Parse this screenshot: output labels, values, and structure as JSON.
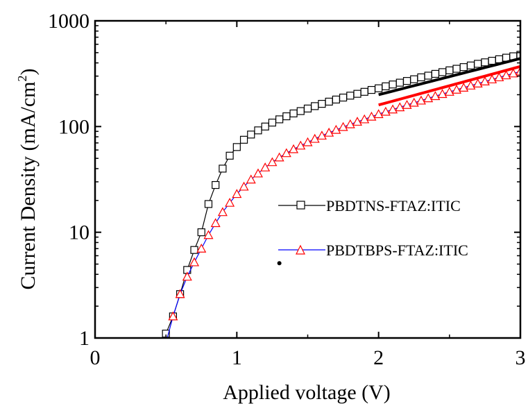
{
  "chart_data": {
    "type": "scatter",
    "x_axis": {
      "label": "Applied voltage (V)",
      "range": [
        0,
        3
      ],
      "ticks": [
        "0",
        "1",
        "2",
        "3"
      ],
      "scale": "linear"
    },
    "y_axis": {
      "label": "Current Density (mA/cm",
      "label_superscript": "2",
      "label_close": ")",
      "range": [
        1,
        1000
      ],
      "ticks": [
        "1",
        "10",
        "100",
        "1000"
      ],
      "scale": "log"
    },
    "grid": false,
    "legend_position": "center-right",
    "series": [
      {
        "name": "PBDTNS-FTAZ:ITIC",
        "marker": "square",
        "color": "#000000",
        "x": [
          0.5,
          0.55,
          0.6,
          0.65,
          0.7,
          0.75,
          0.8,
          0.85,
          0.9,
          0.95,
          1.0,
          1.05,
          1.1,
          1.15,
          1.2,
          1.25,
          1.3,
          1.35,
          1.4,
          1.45,
          1.5,
          1.55,
          1.6,
          1.65,
          1.7,
          1.75,
          1.8,
          1.85,
          1.9,
          1.95,
          2.0,
          2.05,
          2.1,
          2.15,
          2.2,
          2.25,
          2.3,
          2.35,
          2.4,
          2.45,
          2.5,
          2.55,
          2.6,
          2.65,
          2.7,
          2.75,
          2.8,
          2.85,
          2.9,
          2.95,
          3.0
        ],
        "y": [
          1.1,
          1.6,
          2.6,
          4.4,
          6.8,
          10.0,
          18.5,
          28.0,
          40.0,
          53.0,
          64.0,
          75.0,
          84.0,
          92.0,
          100.0,
          109.0,
          117.0,
          125.0,
          133.0,
          140.0,
          148.0,
          156.0,
          164.0,
          172.0,
          180.0,
          188.0,
          196.0,
          204.0,
          213.0,
          222.0,
          230.0,
          240.0,
          250.0,
          260.0,
          270.0,
          280.0,
          292.0,
          303.0,
          315.0,
          327.0,
          340.0,
          352.0,
          365.0,
          378.0,
          392.0,
          405.0,
          419.0,
          433.0,
          448.0,
          462.0,
          477.0
        ],
        "fit": {
          "x": [
            2.0,
            3.0
          ],
          "y": [
            200.0,
            440.0
          ],
          "color": "#000000"
        }
      },
      {
        "name": "PBDTBPS-FTAZ:ITIC",
        "marker": "triangle",
        "color": "#ff0000",
        "x": [
          0.5,
          0.55,
          0.6,
          0.65,
          0.7,
          0.75,
          0.8,
          0.85,
          0.9,
          0.95,
          1.0,
          1.05,
          1.1,
          1.15,
          1.2,
          1.25,
          1.3,
          1.35,
          1.4,
          1.45,
          1.5,
          1.55,
          1.6,
          1.65,
          1.7,
          1.75,
          1.8,
          1.85,
          1.9,
          1.95,
          2.0,
          2.05,
          2.1,
          2.15,
          2.2,
          2.25,
          2.3,
          2.35,
          2.4,
          2.45,
          2.5,
          2.55,
          2.6,
          2.65,
          2.7,
          2.75,
          2.8,
          2.85,
          2.9,
          2.95,
          3.0
        ],
        "y": [
          0.9,
          1.6,
          2.6,
          3.8,
          5.2,
          7.0,
          9.4,
          12.2,
          15.5,
          19.0,
          23.0,
          27.0,
          31.5,
          36.0,
          41.0,
          46.0,
          51.0,
          56.0,
          61.0,
          66.0,
          71.0,
          76.5,
          82.0,
          87.5,
          93.0,
          99.0,
          105.0,
          111.0,
          117.0,
          124.0,
          131.0,
          138.0,
          145.0,
          152.0,
          160.0,
          168.0,
          176.0,
          185.0,
          194.0,
          203.0,
          213.0,
          223.0,
          233.0,
          244.0,
          255.0,
          267.0,
          279.0,
          292.0,
          305.0,
          318.0,
          332.0
        ],
        "fit": {
          "x": [
            2.0,
            3.0
          ],
          "y": [
            160.0,
            370.0
          ],
          "color": "#ff0000"
        }
      }
    ],
    "annotations": [
      {
        "type": "dot",
        "x": 1.3,
        "y": 5.1
      }
    ],
    "legend_line_colors": [
      "#000000",
      "#0000ff"
    ]
  }
}
